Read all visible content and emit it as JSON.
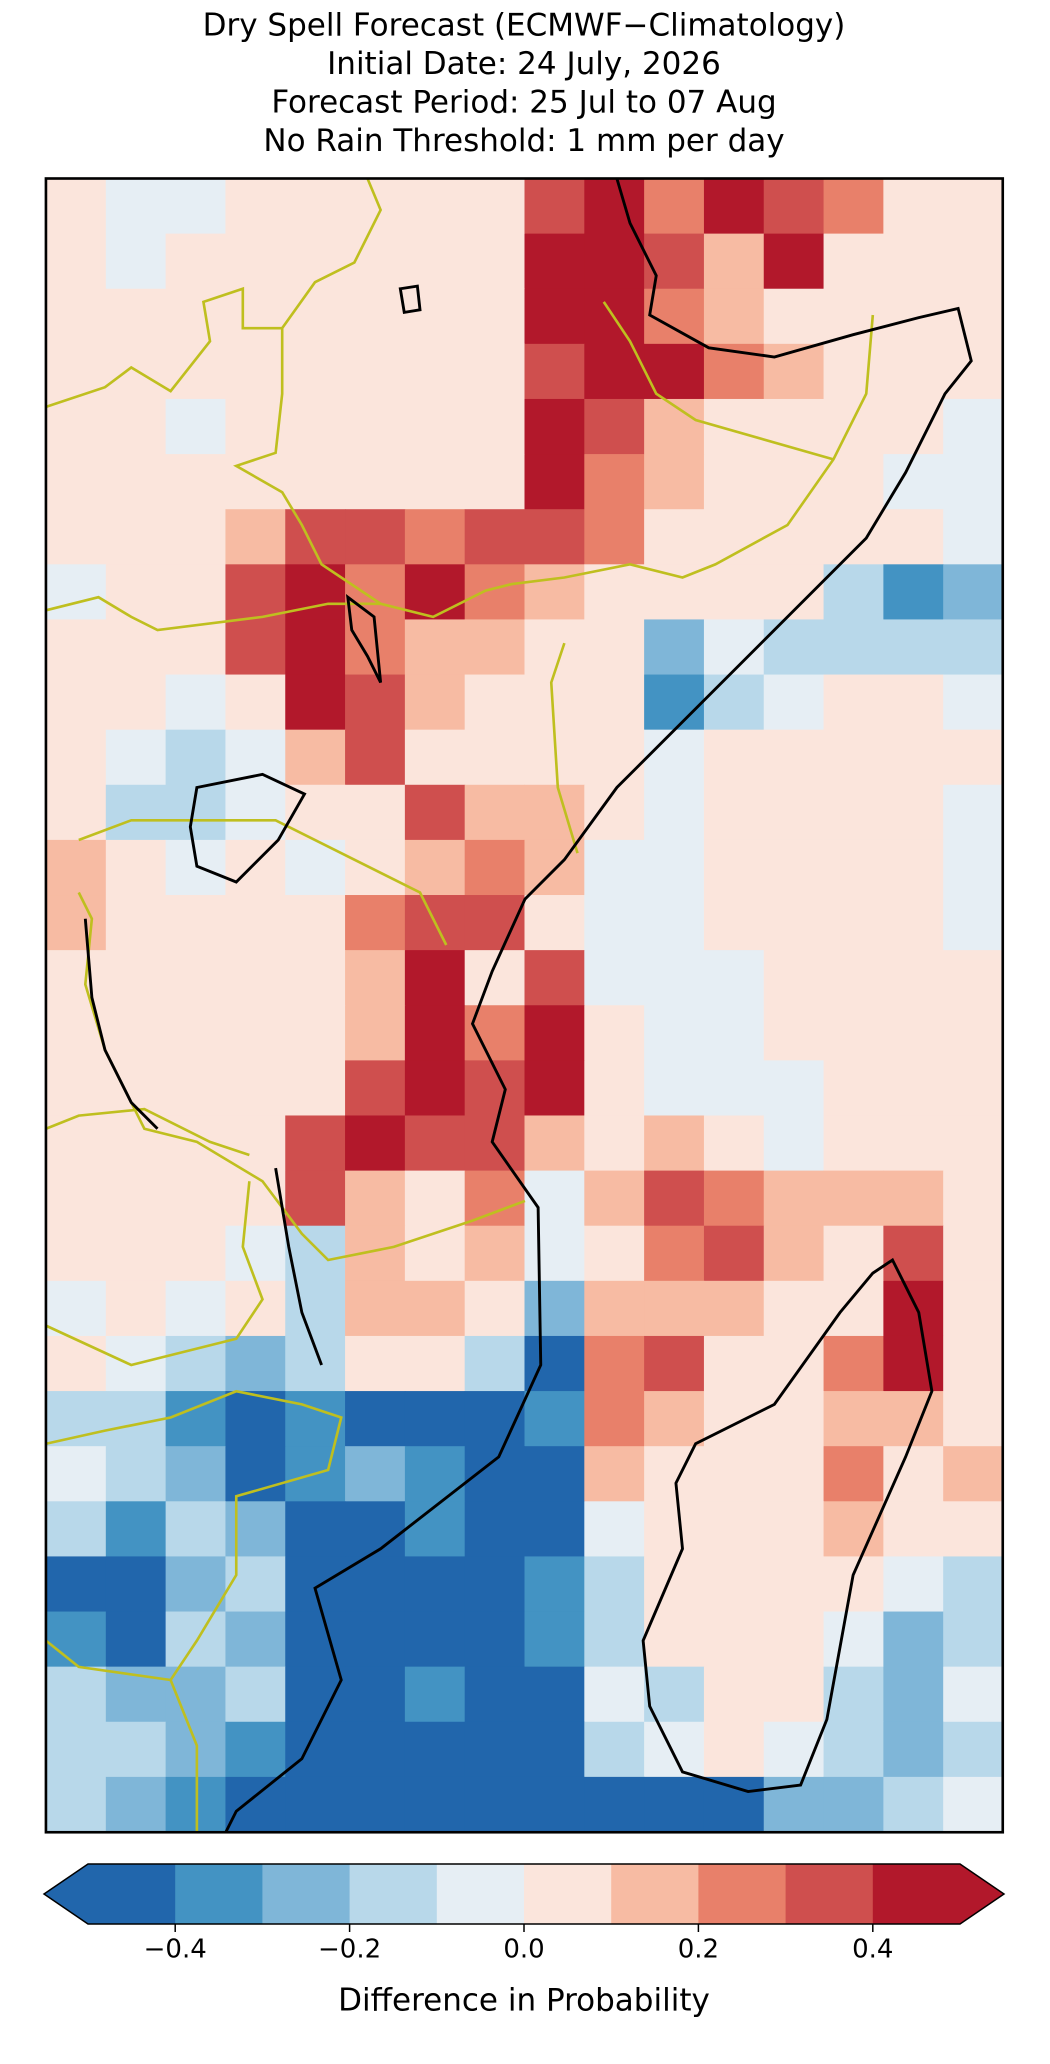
{
  "chart_data": {
    "type": "heatmap",
    "title_lines": [
      "Dry Spell Forecast (ECMWF−Climatology)",
      "Initial Date: 24 July, 2026",
      "Forecast Period: 25 Jul to 07 Aug",
      "No Rain Threshold: 1 mm per day"
    ],
    "colorbar_label": "Difference in Probability",
    "levels": [
      -0.5,
      -0.4,
      -0.3,
      -0.2,
      -0.1,
      0,
      0.1,
      0.2,
      0.3,
      0.4,
      0.5
    ],
    "colors": [
      "#2166ac",
      "#4393c3",
      "#7fb6d8",
      "#b8d8ea",
      "#e6eef4",
      "#fbe5dc",
      "#f7bba3",
      "#e8806a",
      "#cf4f4e",
      "#b2182b"
    ],
    "extend": "both",
    "colorbar_ticks": [
      {
        "value": -0.4,
        "label": "−0.4"
      },
      {
        "value": -0.2,
        "label": "−0.2"
      },
      {
        "value": 0,
        "label": "0.0"
      },
      0.2,
      0.4
    ],
    "values": [
      [
        0.05,
        -0.05,
        -0.05,
        0.05,
        0.05,
        0.05,
        0.05,
        0.05,
        0.35,
        0.45,
        0.25,
        0.45,
        0.35,
        0.25,
        0.05,
        0.05
      ],
      [
        0.05,
        -0.05,
        0.05,
        0.05,
        0.05,
        0.05,
        0.05,
        0.05,
        0.45,
        0.45,
        0.35,
        0.15,
        0.45,
        0.05,
        0.05,
        0.05
      ],
      [
        0.05,
        0.05,
        0.05,
        0.05,
        0.05,
        0.05,
        0.05,
        0.05,
        0.45,
        0.45,
        0.25,
        0.15,
        0.05,
        0.05,
        0.05,
        0.05
      ],
      [
        0.05,
        0.05,
        0.05,
        0.05,
        0.05,
        0.05,
        0.05,
        0.05,
        0.35,
        0.45,
        0.45,
        0.25,
        0.15,
        0.05,
        0.05,
        0.05
      ],
      [
        0.05,
        0.05,
        -0.05,
        0.05,
        0.05,
        0.05,
        0.05,
        0.05,
        0.45,
        0.35,
        0.15,
        0.05,
        0.05,
        0.05,
        0.05,
        -0.05
      ],
      [
        0.05,
        0.05,
        0.05,
        0.05,
        0.05,
        0.05,
        0.05,
        0.05,
        0.45,
        0.25,
        0.15,
        0.05,
        0.05,
        0.05,
        -0.05,
        -0.05
      ],
      [
        0.05,
        0.05,
        0.05,
        0.15,
        0.35,
        0.35,
        0.25,
        0.35,
        0.35,
        0.25,
        0.05,
        0.05,
        0.05,
        0.05,
        0.05,
        -0.05
      ],
      [
        -0.05,
        0.05,
        0.05,
        0.35,
        0.45,
        0.25,
        0.45,
        0.25,
        0.15,
        0.05,
        0.05,
        0.05,
        0.05,
        -0.15,
        -0.35,
        -0.25
      ],
      [
        0.05,
        0.05,
        0.05,
        0.35,
        0.45,
        0.25,
        0.15,
        0.15,
        0.05,
        0.05,
        -0.25,
        -0.05,
        -0.15,
        -0.15,
        -0.15,
        -0.15
      ],
      [
        0.05,
        0.05,
        -0.05,
        0.05,
        0.45,
        0.35,
        0.15,
        0.05,
        0.05,
        0.05,
        -0.35,
        -0.15,
        -0.05,
        0.05,
        0.05,
        -0.05
      ],
      [
        0.05,
        -0.05,
        -0.15,
        -0.05,
        0.15,
        0.35,
        0.05,
        0.05,
        0.05,
        0.05,
        -0.05,
        0.05,
        0.05,
        0.05,
        0.05,
        0.05
      ],
      [
        0.05,
        -0.15,
        -0.15,
        -0.05,
        0.05,
        0.05,
        0.35,
        0.15,
        0.15,
        0.05,
        -0.05,
        0.05,
        0.05,
        0.05,
        0.05,
        -0.05
      ],
      [
        0.15,
        0.05,
        -0.05,
        0.05,
        -0.05,
        0.05,
        0.15,
        0.25,
        0.15,
        -0.05,
        -0.05,
        0.05,
        0.05,
        0.05,
        0.05,
        -0.05
      ],
      [
        0.15,
        0.05,
        0.05,
        0.05,
        0.05,
        0.25,
        0.35,
        0.35,
        0.05,
        -0.05,
        -0.05,
        0.05,
        0.05,
        0.05,
        0.05,
        -0.05
      ],
      [
        0.05,
        0.05,
        0.05,
        0.05,
        0.05,
        0.15,
        0.45,
        0.05,
        0.35,
        -0.05,
        -0.05,
        -0.05,
        0.05,
        0.05,
        0.05,
        0.05
      ],
      [
        0.05,
        0.05,
        0.05,
        0.05,
        0.05,
        0.15,
        0.45,
        0.25,
        0.45,
        0.05,
        -0.05,
        -0.05,
        0.05,
        0.05,
        0.05,
        0.05
      ],
      [
        0.05,
        0.05,
        0.05,
        0.05,
        0.05,
        0.35,
        0.45,
        0.35,
        0.45,
        0.05,
        -0.05,
        -0.05,
        -0.05,
        0.05,
        0.05,
        0.05
      ],
      [
        0.05,
        0.05,
        0.05,
        0.05,
        0.35,
        0.45,
        0.35,
        0.35,
        0.15,
        0.05,
        0.15,
        0.05,
        -0.05,
        0.05,
        0.05,
        0.05
      ],
      [
        0.05,
        0.05,
        0.05,
        0.05,
        0.35,
        0.15,
        0.05,
        0.25,
        -0.05,
        0.15,
        0.35,
        0.25,
        0.15,
        0.15,
        0.15,
        0.05
      ],
      [
        0.05,
        0.05,
        0.05,
        -0.05,
        -0.15,
        0.15,
        0.05,
        0.15,
        -0.05,
        0.05,
        0.25,
        0.35,
        0.15,
        0.05,
        0.35,
        0.05
      ],
      [
        -0.05,
        0.05,
        -0.05,
        0.05,
        -0.15,
        0.15,
        0.15,
        0.05,
        -0.25,
        0.15,
        0.15,
        0.15,
        0.05,
        0.05,
        0.45,
        0.05
      ],
      [
        0.05,
        -0.05,
        -0.15,
        -0.25,
        -0.15,
        0.05,
        0.05,
        -0.15,
        -0.45,
        0.25,
        0.35,
        0.05,
        0.05,
        0.25,
        0.45,
        0.05
      ],
      [
        -0.15,
        -0.15,
        -0.35,
        -0.45,
        -0.35,
        -0.45,
        -0.45,
        -0.45,
        -0.35,
        0.25,
        0.15,
        0.05,
        0.05,
        0.15,
        0.15,
        0.05
      ],
      [
        -0.05,
        -0.15,
        -0.25,
        -0.45,
        -0.35,
        -0.25,
        -0.35,
        -0.45,
        -0.45,
        0.15,
        0.05,
        0.05,
        0.05,
        0.25,
        0.05,
        0.15
      ],
      [
        -0.15,
        -0.35,
        -0.15,
        -0.25,
        -0.45,
        -0.45,
        -0.35,
        -0.45,
        -0.45,
        -0.05,
        0.05,
        0.05,
        0.05,
        0.15,
        0.05,
        0.05
      ],
      [
        -0.45,
        -0.45,
        -0.25,
        -0.15,
        -0.45,
        -0.45,
        -0.45,
        -0.45,
        -0.35,
        -0.15,
        0.05,
        0.05,
        0.05,
        0.05,
        -0.05,
        -0.15
      ],
      [
        -0.35,
        -0.45,
        -0.15,
        -0.25,
        -0.45,
        -0.45,
        -0.45,
        -0.45,
        -0.35,
        -0.15,
        0.05,
        0.05,
        0.05,
        -0.05,
        -0.25,
        -0.15
      ],
      [
        -0.15,
        -0.25,
        -0.25,
        -0.15,
        -0.45,
        -0.45,
        -0.35,
        -0.45,
        -0.45,
        -0.05,
        -0.15,
        0.05,
        0.05,
        -0.15,
        -0.25,
        -0.05
      ],
      [
        -0.15,
        -0.15,
        -0.25,
        -0.35,
        -0.45,
        -0.45,
        -0.45,
        -0.45,
        -0.45,
        -0.15,
        -0.05,
        0.05,
        -0.05,
        -0.15,
        -0.25,
        -0.15
      ],
      [
        -0.15,
        -0.25,
        -0.35,
        -0.45,
        -0.45,
        -0.45,
        -0.45,
        -0.45,
        -0.45,
        -0.45,
        -0.45,
        -0.45,
        -0.25,
        -0.25,
        -0.15,
        -0.05
      ]
    ]
  }
}
